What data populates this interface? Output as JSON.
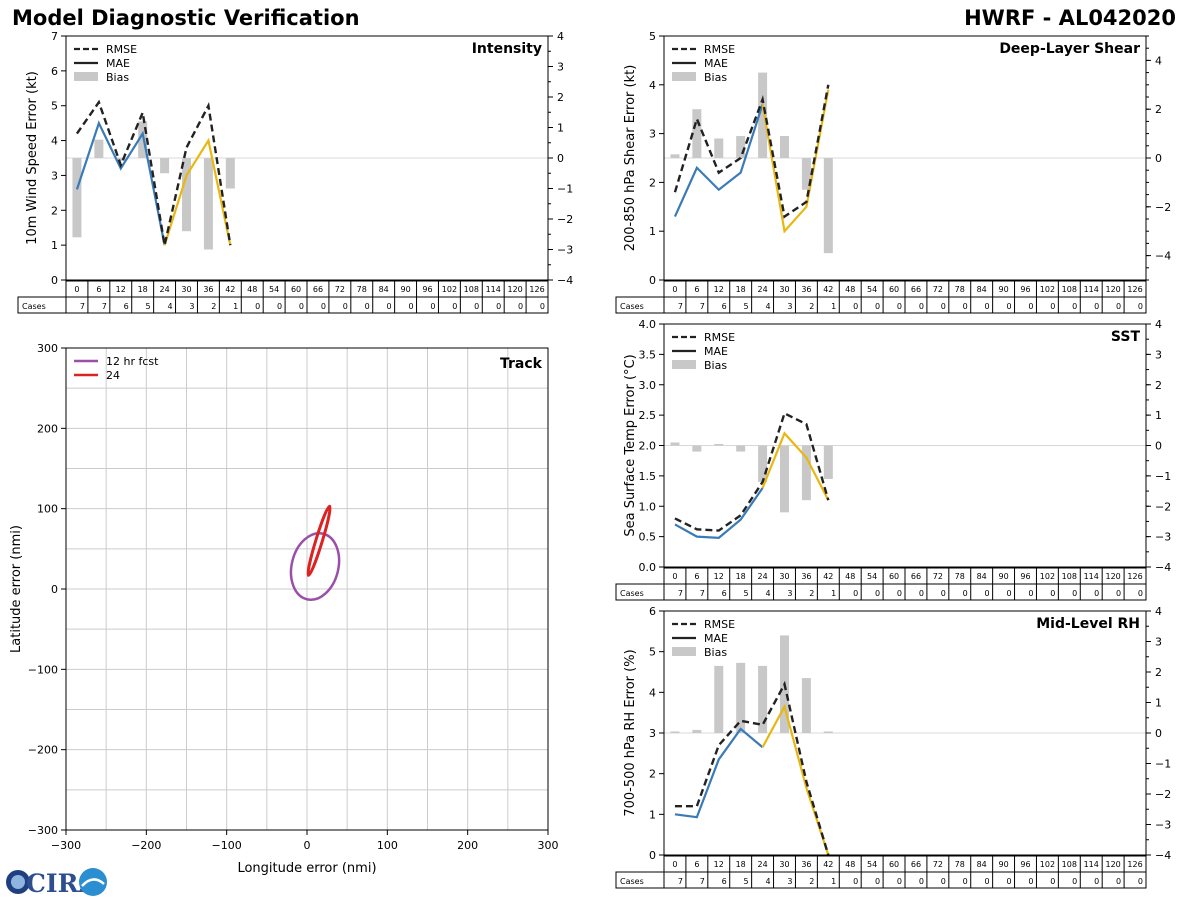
{
  "header": {
    "title_left": "Model Diagnostic Verification",
    "title_right": "HWRF - AL042020"
  },
  "logo": {
    "text": "CIRA",
    "name": "cira-logo"
  },
  "colors": {
    "rmse": "#222222",
    "mae_early": "#3a7ab8",
    "mae_late": "#e8b711",
    "bias": "#c8c8c8",
    "track_12": "#9a4fa8",
    "track_24": "#dd2222",
    "grid": "#cccccc"
  },
  "legend": {
    "rmse": "RMSE",
    "mae": "MAE",
    "bias": "Bias"
  },
  "table": {
    "cases_label": "Cases",
    "hours": [
      "0",
      "6",
      "12",
      "18",
      "24",
      "30",
      "36",
      "42",
      "48",
      "54",
      "60",
      "66",
      "72",
      "78",
      "84",
      "90",
      "96",
      "102",
      "108",
      "114",
      "120",
      "126"
    ],
    "cases": [
      "7",
      "7",
      "6",
      "5",
      "4",
      "3",
      "2",
      "1",
      "0",
      "0",
      "0",
      "0",
      "0",
      "0",
      "0",
      "0",
      "0",
      "0",
      "0",
      "0",
      "0",
      "0"
    ]
  },
  "chart_data": [
    {
      "id": "intensity",
      "type": "line",
      "title": "Intensity",
      "ylabel": "10m Wind Speed Error (kt)",
      "ylim": [
        0,
        7
      ],
      "y2lim": [
        -4,
        4
      ],
      "yticks": [
        "0",
        "1",
        "2",
        "3",
        "4",
        "5",
        "6",
        "7"
      ],
      "y2ticks": [
        "−4",
        "−3",
        "−2",
        "−1",
        "0",
        "1",
        "2",
        "3",
        "4"
      ],
      "x": [
        0,
        6,
        12,
        18,
        24,
        30,
        36,
        42
      ],
      "series": [
        {
          "name": "RMSE",
          "values": [
            4.2,
            5.1,
            3.3,
            4.8,
            1.0,
            3.8,
            5.0,
            1.0
          ]
        },
        {
          "name": "MAE",
          "values": [
            2.6,
            4.5,
            3.2,
            4.2,
            1.0,
            3.0,
            4.0,
            1.0
          ]
        },
        {
          "name": "Bias",
          "values": [
            -2.6,
            0.6,
            -0.1,
            1.2,
            -0.5,
            -2.4,
            -3.0,
            -1.0
          ]
        }
      ]
    },
    {
      "id": "shear",
      "type": "line",
      "title": "Deep-Layer Shear",
      "ylabel": "200-850 hPa Shear Error (kt)",
      "ylim": [
        0,
        5
      ],
      "y2lim": [
        -5,
        5
      ],
      "yticks": [
        "0",
        "1",
        "2",
        "3",
        "4",
        "5"
      ],
      "y2ticks": [
        "−4",
        "−2",
        "0",
        "2",
        "4"
      ],
      "x": [
        0,
        6,
        12,
        18,
        24,
        30,
        36,
        42
      ],
      "series": [
        {
          "name": "RMSE",
          "values": [
            1.8,
            3.3,
            2.2,
            2.5,
            3.7,
            1.3,
            1.6,
            4.0
          ]
        },
        {
          "name": "MAE",
          "values": [
            1.3,
            2.3,
            1.85,
            2.2,
            3.6,
            1.0,
            1.5,
            3.9
          ]
        },
        {
          "name": "Bias",
          "values": [
            0.15,
            2.0,
            0.8,
            0.9,
            3.5,
            0.9,
            -1.3,
            -3.9
          ]
        }
      ]
    },
    {
      "id": "sst",
      "type": "line",
      "title": "SST",
      "ylabel": "Sea Surface Temp Error (°C)",
      "ylim": [
        0,
        4
      ],
      "y2lim": [
        -4,
        4
      ],
      "yticks": [
        "0.0",
        "0.5",
        "1.0",
        "1.5",
        "2.0",
        "2.5",
        "3.0",
        "3.5",
        "4.0"
      ],
      "y2ticks": [
        "−4",
        "−3",
        "−2",
        "−1",
        "0",
        "1",
        "2",
        "3",
        "4"
      ],
      "x": [
        0,
        6,
        12,
        18,
        24,
        30,
        36,
        42
      ],
      "series": [
        {
          "name": "RMSE",
          "values": [
            0.8,
            0.62,
            0.6,
            0.85,
            1.4,
            2.53,
            2.35,
            1.1
          ]
        },
        {
          "name": "MAE",
          "values": [
            0.7,
            0.5,
            0.48,
            0.78,
            1.3,
            2.2,
            1.8,
            1.1
          ]
        },
        {
          "name": "Bias",
          "values": [
            0.1,
            -0.2,
            0.05,
            -0.2,
            -1.2,
            -2.2,
            -1.8,
            -1.1
          ]
        }
      ]
    },
    {
      "id": "rh",
      "type": "line",
      "title": "Mid-Level RH",
      "ylabel": "700-500 hPa RH Error (%)",
      "ylim": [
        0,
        6
      ],
      "y2lim": [
        -4,
        4
      ],
      "yticks": [
        "0",
        "1",
        "2",
        "3",
        "4",
        "5",
        "6"
      ],
      "y2ticks": [
        "−4",
        "−3",
        "−2",
        "−1",
        "0",
        "1",
        "2",
        "3",
        "4"
      ],
      "x": [
        0,
        6,
        12,
        18,
        24,
        30,
        36,
        42
      ],
      "series": [
        {
          "name": "RMSE",
          "values": [
            1.2,
            1.2,
            2.7,
            3.3,
            3.2,
            4.2,
            1.8,
            0
          ]
        },
        {
          "name": "MAE",
          "values": [
            1.0,
            0.93,
            2.35,
            3.1,
            2.65,
            3.65,
            1.65,
            0
          ]
        },
        {
          "name": "Bias",
          "values": [
            0.05,
            0.1,
            2.2,
            2.3,
            2.2,
            3.2,
            1.8,
            0.05
          ]
        }
      ]
    },
    {
      "id": "track",
      "type": "scatter",
      "title": "Track",
      "xlabel": "Longitude error (nmi)",
      "ylabel": "Latitude error (nmi)",
      "xlim": [
        -300,
        300
      ],
      "ylim": [
        -300,
        300
      ],
      "xticks": [
        "−300",
        "−200",
        "−100",
        "0",
        "100",
        "200",
        "300"
      ],
      "yticks": [
        "−300",
        "−200",
        "−100",
        "0",
        "100",
        "200",
        "300"
      ],
      "legend": [
        {
          "name": "12 hr fcst"
        },
        {
          "name": "24"
        }
      ],
      "ellipses": [
        {
          "name": "12 hr fcst",
          "cx": 10,
          "cy": 28,
          "rx": 29,
          "ry": 42,
          "angle_deg": 14
        },
        {
          "name": "24",
          "cx": 15,
          "cy": 60,
          "rx": 4,
          "ry": 45,
          "angle_deg": 17
        }
      ]
    }
  ]
}
